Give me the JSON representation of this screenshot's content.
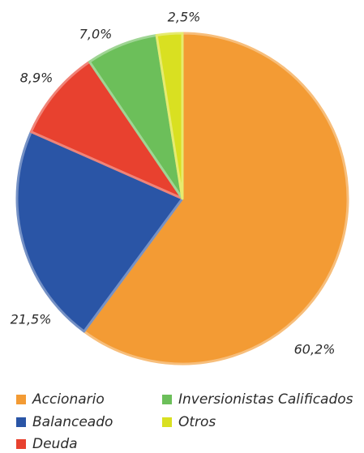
{
  "chart_data": {
    "type": "pie",
    "categories": [
      "Accionario",
      "Balanceado",
      "Deuda",
      "Inversionistas Calificados",
      "Otros"
    ],
    "values": [
      60.2,
      21.5,
      8.9,
      7.0,
      2.5
    ],
    "value_labels": [
      "60,2%",
      "21,5%",
      "8,9%",
      "7,0%",
      "2,5%"
    ],
    "colors": [
      "#f39b34",
      "#2a55a6",
      "#e8412f",
      "#6cbf5a",
      "#d9e021"
    ],
    "legend": "bottom"
  }
}
